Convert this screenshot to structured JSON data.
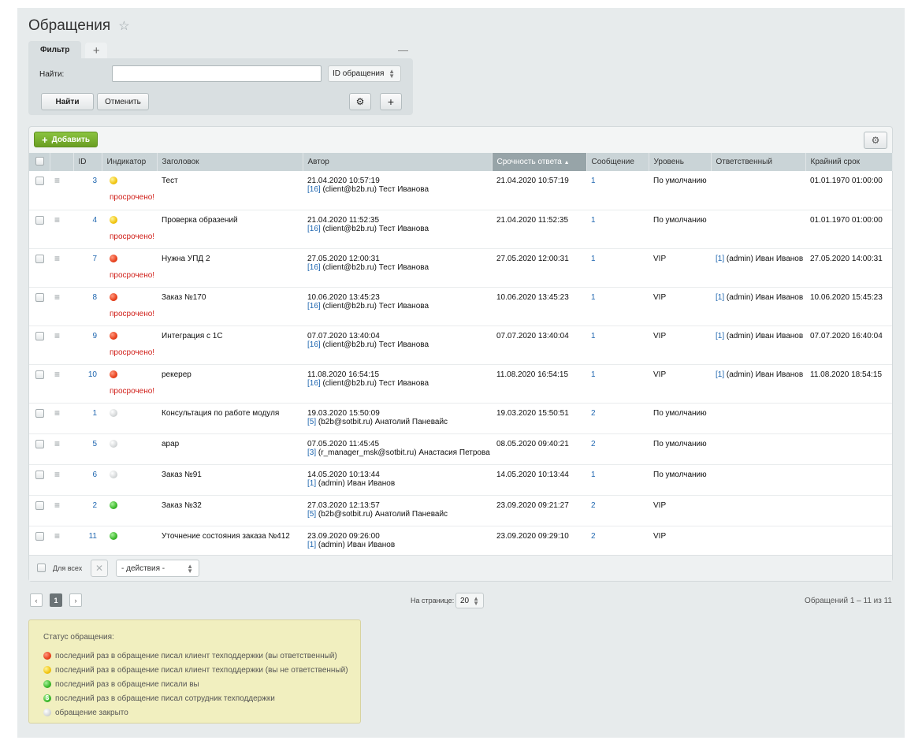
{
  "header": {
    "title": "Обращения"
  },
  "filter": {
    "tab_label": "Фильтр",
    "find_label": "Найти:",
    "search_value": "",
    "field_select": "ID обращения",
    "find_button": "Найти",
    "cancel_button": "Отменить"
  },
  "grid": {
    "add_button": "Добавить",
    "columns": [
      "ID",
      "Индикатор",
      "Заголовок",
      "Автор",
      "Срочность ответа",
      "Сообщение",
      "Уровень",
      "Ответственный",
      "Крайний срок"
    ],
    "overdue_label": "просрочено!",
    "rows": [
      {
        "id": "3",
        "indicator": "yellow",
        "overdue": true,
        "title": "Тест",
        "author_date": "21.04.2020 10:57:19",
        "author_id": "[16]",
        "author_name": " (client@b2b.ru) Тест Иванова",
        "urgency": "21.04.2020 10:57:19",
        "messages": "1",
        "level": "По умолчанию",
        "resp_id": "",
        "resp_name": "",
        "deadline": "01.01.1970 01:00:00"
      },
      {
        "id": "4",
        "indicator": "yellow",
        "overdue": true,
        "title": "Проверка образений",
        "author_date": "21.04.2020 11:52:35",
        "author_id": "[16]",
        "author_name": " (client@b2b.ru) Тест Иванова",
        "urgency": "21.04.2020 11:52:35",
        "messages": "1",
        "level": "По умолчанию",
        "resp_id": "",
        "resp_name": "",
        "deadline": "01.01.1970 01:00:00"
      },
      {
        "id": "7",
        "indicator": "red",
        "overdue": true,
        "title": "Нужна УПД 2",
        "author_date": "27.05.2020 12:00:31",
        "author_id": "[16]",
        "author_name": " (client@b2b.ru) Тест Иванова",
        "urgency": "27.05.2020 12:00:31",
        "messages": "1",
        "level": "VIP",
        "resp_id": "[1]",
        "resp_name": " (admin) Иван Иванов",
        "deadline": "27.05.2020 14:00:31"
      },
      {
        "id": "8",
        "indicator": "red",
        "overdue": true,
        "title": "Заказ №170",
        "author_date": "10.06.2020 13:45:23",
        "author_id": "[16]",
        "author_name": " (client@b2b.ru) Тест Иванова",
        "urgency": "10.06.2020 13:45:23",
        "messages": "1",
        "level": "VIP",
        "resp_id": "[1]",
        "resp_name": " (admin) Иван Иванов",
        "deadline": "10.06.2020 15:45:23"
      },
      {
        "id": "9",
        "indicator": "red",
        "overdue": true,
        "title": "Интеграция с 1С",
        "author_date": "07.07.2020 13:40:04",
        "author_id": "[16]",
        "author_name": " (client@b2b.ru) Тест Иванова",
        "urgency": "07.07.2020 13:40:04",
        "messages": "1",
        "level": "VIP",
        "resp_id": "[1]",
        "resp_name": " (admin) Иван Иванов",
        "deadline": "07.07.2020 16:40:04"
      },
      {
        "id": "10",
        "indicator": "red",
        "overdue": true,
        "title": "рекерер",
        "author_date": "11.08.2020 16:54:15",
        "author_id": "[16]",
        "author_name": " (client@b2b.ru) Тест Иванова",
        "urgency": "11.08.2020 16:54:15",
        "messages": "1",
        "level": "VIP",
        "resp_id": "[1]",
        "resp_name": " (admin) Иван Иванов",
        "deadline": "11.08.2020 18:54:15"
      },
      {
        "id": "1",
        "indicator": "gray",
        "overdue": false,
        "title": "Консультация по работе модуля",
        "author_date": "19.03.2020 15:50:09",
        "author_id": "[5]",
        "author_name": " (b2b@sotbit.ru) Анатолий Паневайс",
        "urgency": "19.03.2020 15:50:51",
        "messages": "2",
        "level": "По умолчанию",
        "resp_id": "",
        "resp_name": "",
        "deadline": ""
      },
      {
        "id": "5",
        "indicator": "gray",
        "overdue": false,
        "title": "арар",
        "author_date": "07.05.2020 11:45:45",
        "author_id": "[3]",
        "author_name": " (r_manager_msk@sotbit.ru) Анастасия Петрова",
        "urgency": "08.05.2020 09:40:21",
        "messages": "2",
        "level": "По умолчанию",
        "resp_id": "",
        "resp_name": "",
        "deadline": ""
      },
      {
        "id": "6",
        "indicator": "gray",
        "overdue": false,
        "title": "Заказ №91",
        "author_date": "14.05.2020 10:13:44",
        "author_id": "[1]",
        "author_name": " (admin) Иван Иванов",
        "urgency": "14.05.2020 10:13:44",
        "messages": "1",
        "level": "По умолчанию",
        "resp_id": "",
        "resp_name": "",
        "deadline": ""
      },
      {
        "id": "2",
        "indicator": "green",
        "overdue": false,
        "title": "Заказ №32",
        "author_date": "27.03.2020 12:13:57",
        "author_id": "[5]",
        "author_name": " (b2b@sotbit.ru) Анатолий Паневайс",
        "urgency": "23.09.2020 09:21:27",
        "messages": "2",
        "level": "VIP",
        "resp_id": "",
        "resp_name": "",
        "deadline": ""
      },
      {
        "id": "11",
        "indicator": "green",
        "overdue": false,
        "title": "Уточнение состояния заказа №412",
        "author_date": "23.09.2020 09:26:00",
        "author_id": "[1]",
        "author_name": " (admin) Иван Иванов",
        "urgency": "23.09.2020 09:29:10",
        "messages": "2",
        "level": "VIP",
        "resp_id": "",
        "resp_name": "",
        "deadline": ""
      }
    ],
    "footer": {
      "for_all": "Для всех",
      "actions_select": "- действия -"
    }
  },
  "pager": {
    "current_page": "1",
    "per_page_label": "На странице:",
    "per_page_value": "20",
    "count_text": "Обращений 1 – 11 из 11"
  },
  "legend": {
    "title": "Статус обращения:",
    "items": [
      {
        "color": "red",
        "text": "последний раз в обращение писал клиент техподдержки (вы ответственный)"
      },
      {
        "color": "yellow",
        "text": "последний раз в обращение писал клиент техподдержки (вы не ответственный)"
      },
      {
        "color": "green",
        "text": "последний раз в обращение писали вы"
      },
      {
        "color": "green-s",
        "text": "последний раз в обращение писал сотрудник техподдержки"
      },
      {
        "color": "gray",
        "text": "обращение закрыто"
      }
    ]
  }
}
